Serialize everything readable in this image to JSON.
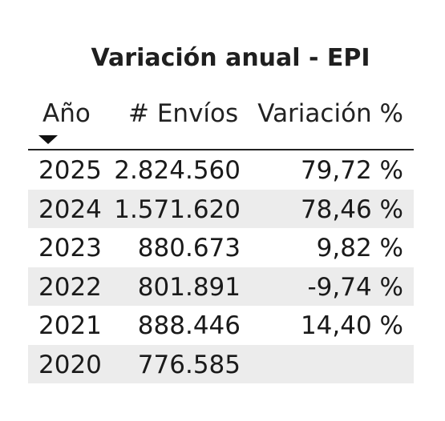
{
  "chart_data": {
    "type": "table",
    "title": "Variación anual - EPI",
    "columns": [
      "Año",
      "# Envíos",
      "Variación %"
    ],
    "sort": {
      "column": "Año",
      "direction": "descending"
    },
    "rows": [
      {
        "year": "2025",
        "shipments": "2.824.560",
        "variation": "79,72 %"
      },
      {
        "year": "2024",
        "shipments": "1.571.620",
        "variation": "78,46 %"
      },
      {
        "year": "2023",
        "shipments": "880.673",
        "variation": "9,82 %"
      },
      {
        "year": "2022",
        "shipments": "801.891",
        "variation": "-9,74 %"
      },
      {
        "year": "2021",
        "shipments": "888.446",
        "variation": "14,40 %"
      },
      {
        "year": "2020",
        "shipments": "776.585",
        "variation": ""
      }
    ],
    "colors": {
      "alt_row": "#ececec",
      "header_rule": "#222222",
      "text": "#1a1a1a"
    }
  }
}
